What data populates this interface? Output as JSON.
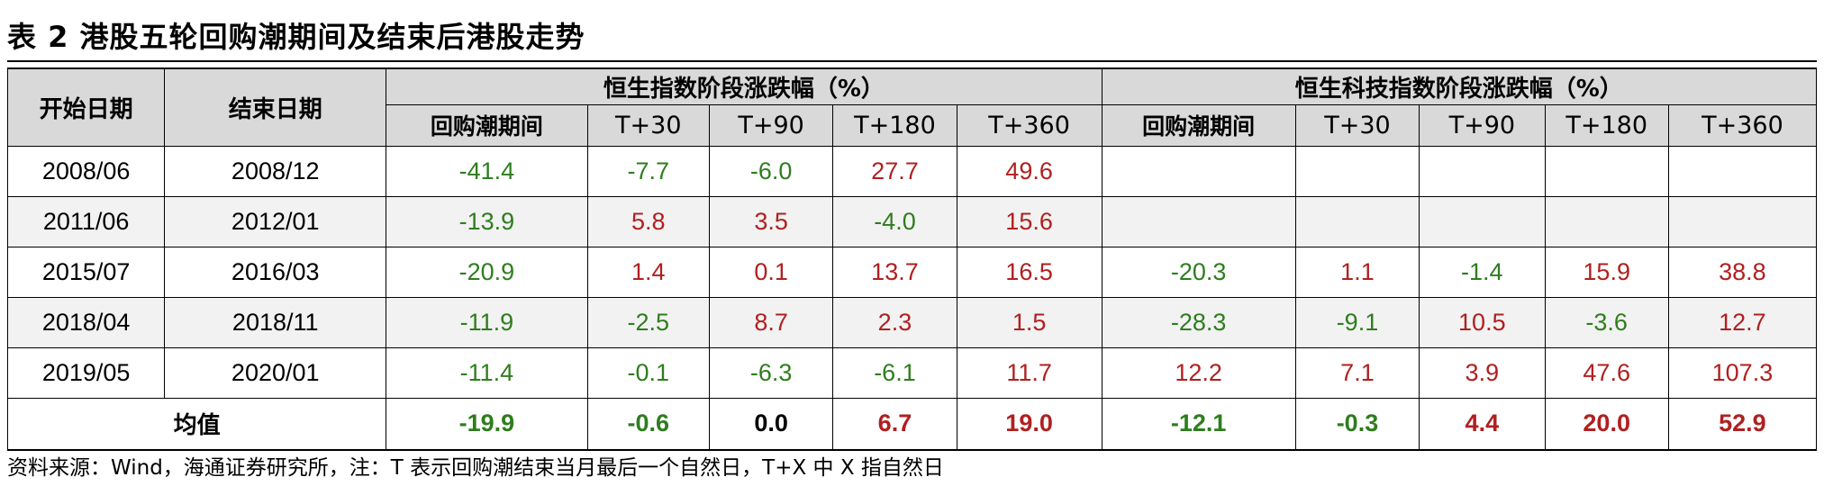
{
  "title": "表 2 港股五轮回购潮期间及结束后港股走势",
  "headers": {
    "start_date": "开始日期",
    "end_date": "结束日期",
    "hsi_group": "恒生指数阶段涨跌幅（%）",
    "hstech_group": "恒生科技指数阶段涨跌幅（%）",
    "sub": [
      "回购潮期间",
      "T+30",
      "T+90",
      "T+180",
      "T+360"
    ]
  },
  "rows": [
    {
      "start": "2008/06",
      "end": "2008/12",
      "hsi": [
        "-41.4",
        "-7.7",
        "-6.0",
        "27.7",
        "49.6"
      ],
      "hstech": [
        "",
        "",
        "",
        "",
        ""
      ]
    },
    {
      "start": "2011/06",
      "end": "2012/01",
      "hsi": [
        "-13.9",
        "5.8",
        "3.5",
        "-4.0",
        "15.6"
      ],
      "hstech": [
        "",
        "",
        "",
        "",
        ""
      ]
    },
    {
      "start": "2015/07",
      "end": "2016/03",
      "hsi": [
        "-20.9",
        "1.4",
        "0.1",
        "13.7",
        "16.5"
      ],
      "hstech": [
        "-20.3",
        "1.1",
        "-1.4",
        "15.9",
        "38.8"
      ]
    },
    {
      "start": "2018/04",
      "end": "2018/11",
      "hsi": [
        "-11.9",
        "-2.5",
        "8.7",
        "2.3",
        "1.5"
      ],
      "hstech": [
        "-28.3",
        "-9.1",
        "10.5",
        "-3.6",
        "12.7"
      ]
    },
    {
      "start": "2019/05",
      "end": "2020/01",
      "hsi": [
        "-11.4",
        "-0.1",
        "-6.3",
        "-6.1",
        "11.7"
      ],
      "hstech": [
        "12.2",
        "7.1",
        "3.9",
        "47.6",
        "107.3"
      ]
    }
  ],
  "average": {
    "label": "均值",
    "hsi": [
      "-19.9",
      "-0.6",
      "0.0",
      "6.7",
      "19.0"
    ],
    "hstech": [
      "-12.1",
      "-0.3",
      "4.4",
      "20.0",
      "52.9"
    ]
  },
  "source": "资料来源：Wind，海通证券研究所，注：T 表示回购潮结束当月最后一个自然日，T+X 中 X 指自然日",
  "colors": {
    "negative": "#2e7d1e",
    "positive": "#b02020",
    "header_bg": "#d9d9d9",
    "alt_row_bg": "#f2f2f2"
  }
}
